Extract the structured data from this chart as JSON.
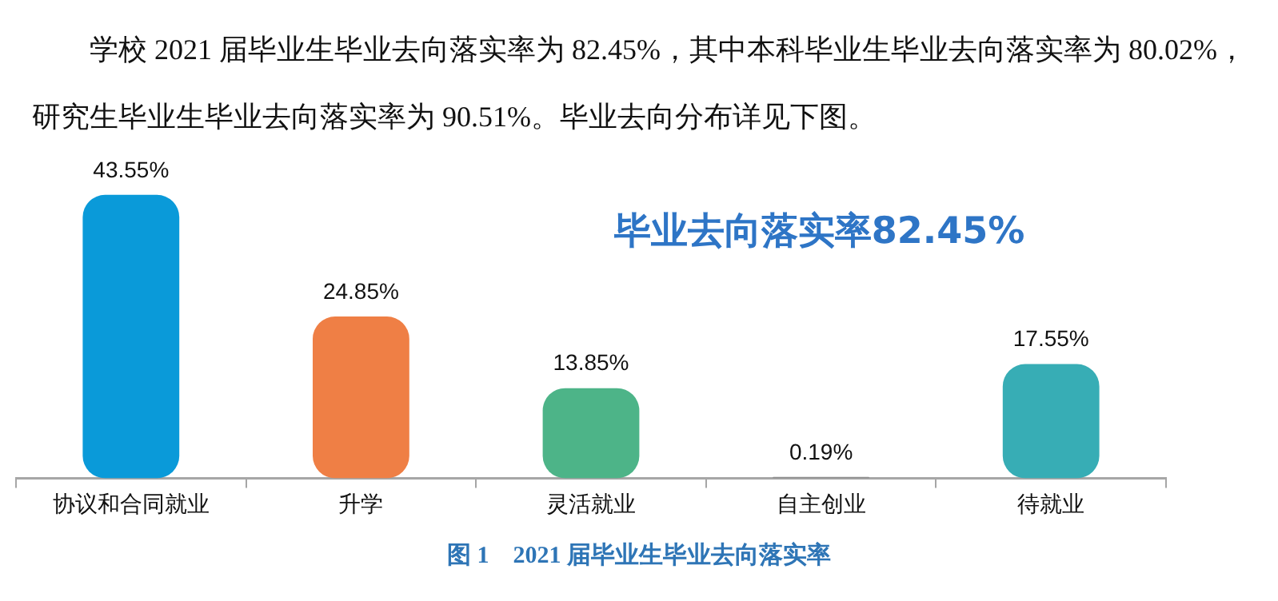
{
  "chart_data": {
    "type": "bar",
    "title": "图 1　2021 届毕业生毕业去向落实率",
    "annotations": [
      "学校 2021 届毕业生毕业去向落实率为 82.45%，其中本科毕业生毕业去向落实率为 80.02%，研究生毕业生毕业去向落实率为 90.51%。毕业去向分布详见下图。",
      "毕业去向落实率82.45%"
    ],
    "categories": [
      "协议和合同就业",
      "升学",
      "灵活就业",
      "自主创业",
      "待就业"
    ],
    "values": [
      43.55,
      24.85,
      13.85,
      0.19,
      17.55
    ],
    "colors": [
      "#0a9ad9",
      "#ef7f45",
      "#4db488",
      "#8c8c8c",
      "#37adb5"
    ],
    "value_labels": [
      "43.55%",
      "24.85%",
      "13.85%",
      "0.19%",
      "17.55%"
    ],
    "grid": false,
    "legend": false,
    "tick_labels": "x"
  }
}
